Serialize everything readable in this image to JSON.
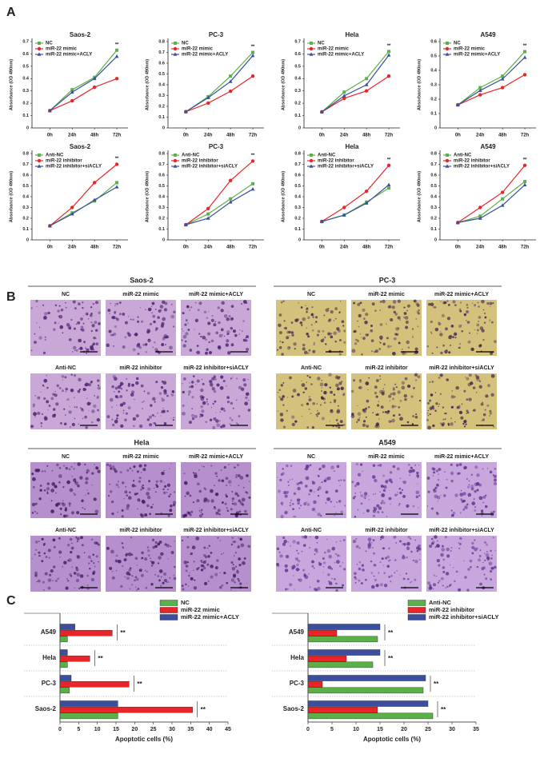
{
  "panel_labels": [
    "A",
    "B",
    "C"
  ],
  "chart_data": [
    {
      "type": "line",
      "title": "Saos-2",
      "y_label": "Absorbance (OD 490nm)",
      "categories": [
        "0h",
        "24h",
        "48h",
        "72h"
      ],
      "annotation": "**",
      "series": [
        {
          "name": "NC",
          "color": "#5bb04a",
          "values": [
            0.14,
            0.31,
            0.41,
            0.63
          ]
        },
        {
          "name": "miR-22 mimic",
          "color": "#e8262a",
          "values": [
            0.14,
            0.22,
            0.33,
            0.4
          ]
        },
        {
          "name": "miR-22 mimic+ACLY",
          "color": "#3b4fa0",
          "values": [
            0.14,
            0.29,
            0.4,
            0.58
          ]
        }
      ],
      "ylim": [
        0,
        0.7
      ],
      "yticks": [
        0,
        0.1,
        0.2,
        0.3,
        0.4,
        0.5,
        0.6,
        0.7
      ]
    },
    {
      "type": "line",
      "title": "PC-3",
      "y_label": "Absorbance (OD 490nm)",
      "categories": [
        "0h",
        "24h",
        "48h",
        "72h"
      ],
      "annotation": "**",
      "series": [
        {
          "name": "NC",
          "color": "#5bb04a",
          "values": [
            0.15,
            0.29,
            0.48,
            0.7
          ]
        },
        {
          "name": "miR-22 mimic",
          "color": "#e8262a",
          "values": [
            0.15,
            0.23,
            0.34,
            0.48
          ]
        },
        {
          "name": "miR-22 mimic+ACLY",
          "color": "#3b4fa0",
          "values": [
            0.15,
            0.28,
            0.43,
            0.67
          ]
        }
      ],
      "ylim": [
        0,
        0.8
      ],
      "yticks": [
        0,
        0.1,
        0.2,
        0.3,
        0.4,
        0.5,
        0.6,
        0.7,
        0.8
      ]
    },
    {
      "type": "line",
      "title": "Hela",
      "y_label": "Absorbance (OD 490nm)",
      "categories": [
        "0h",
        "24h",
        "48h",
        "72h"
      ],
      "annotation": "**",
      "series": [
        {
          "name": "NC",
          "color": "#5bb04a",
          "values": [
            0.13,
            0.29,
            0.4,
            0.62
          ]
        },
        {
          "name": "miR-22 mimic",
          "color": "#e8262a",
          "values": [
            0.13,
            0.24,
            0.3,
            0.42
          ]
        },
        {
          "name": "miR-22 mimic+ACLY",
          "color": "#3b4fa0",
          "values": [
            0.13,
            0.26,
            0.35,
            0.59
          ]
        }
      ],
      "ylim": [
        0,
        0.7
      ],
      "yticks": [
        0,
        0.1,
        0.2,
        0.3,
        0.4,
        0.5,
        0.6,
        0.7
      ]
    },
    {
      "type": "line",
      "title": "A549",
      "y_label": "Absorbance (OD 490nm)",
      "categories": [
        "0h",
        "24h",
        "48h",
        "72h"
      ],
      "annotation": "**",
      "series": [
        {
          "name": "NC",
          "color": "#5bb04a",
          "values": [
            0.16,
            0.28,
            0.36,
            0.53
          ]
        },
        {
          "name": "miR-22 mimic",
          "color": "#e8262a",
          "values": [
            0.16,
            0.23,
            0.28,
            0.37
          ]
        },
        {
          "name": "miR-22 mimic+ACLY",
          "color": "#3b4fa0",
          "values": [
            0.16,
            0.26,
            0.34,
            0.49
          ]
        }
      ],
      "ylim": [
        0,
        0.6
      ],
      "yticks": [
        0,
        0.1,
        0.2,
        0.3,
        0.4,
        0.5,
        0.6
      ]
    },
    {
      "type": "line",
      "title": "Saos-2",
      "y_label": "Absorbance (OD 490nm)",
      "categories": [
        "0h",
        "24h",
        "48h",
        "72h"
      ],
      "annotation": "**",
      "series": [
        {
          "name": "Anti-NC",
          "color": "#5bb04a",
          "values": [
            0.13,
            0.25,
            0.36,
            0.53
          ]
        },
        {
          "name": "miR-22 inhibitor",
          "color": "#e8262a",
          "values": [
            0.13,
            0.3,
            0.53,
            0.7
          ]
        },
        {
          "name": "miR-22 inhibitor+siACLY",
          "color": "#3b4fa0",
          "values": [
            0.13,
            0.24,
            0.37,
            0.49
          ]
        }
      ],
      "ylim": [
        0,
        0.8
      ],
      "yticks": [
        0,
        0.1,
        0.2,
        0.3,
        0.4,
        0.5,
        0.6,
        0.7,
        0.8
      ]
    },
    {
      "type": "line",
      "title": "PC-3",
      "y_label": "Absorbance (OD 490nm)",
      "categories": [
        "0h",
        "24h",
        "48h",
        "72h"
      ],
      "annotation": "**",
      "series": [
        {
          "name": "Anti-NC",
          "color": "#5bb04a",
          "values": [
            0.14,
            0.24,
            0.38,
            0.52
          ]
        },
        {
          "name": "miR-22 inhibitor",
          "color": "#e8262a",
          "values": [
            0.14,
            0.29,
            0.55,
            0.73
          ]
        },
        {
          "name": "miR-22 inhibitor+siACLY",
          "color": "#3b4fa0",
          "values": [
            0.14,
            0.2,
            0.35,
            0.47
          ]
        }
      ],
      "ylim": [
        0,
        0.8
      ],
      "yticks": [
        0,
        0.1,
        0.2,
        0.3,
        0.4,
        0.5,
        0.6,
        0.7,
        0.8
      ]
    },
    {
      "type": "line",
      "title": "Hela",
      "y_label": "Absorbance (OD 490nm)",
      "categories": [
        "0h",
        "24h",
        "48h",
        "72h"
      ],
      "annotation": "**",
      "series": [
        {
          "name": "Anti-NC",
          "color": "#5bb04a",
          "values": [
            0.17,
            0.23,
            0.35,
            0.48
          ]
        },
        {
          "name": "miR-22 inhibitor",
          "color": "#e8262a",
          "values": [
            0.17,
            0.3,
            0.45,
            0.69
          ]
        },
        {
          "name": "miR-22 inhibitor+siACLY",
          "color": "#3b4fa0",
          "values": [
            0.17,
            0.23,
            0.34,
            0.51
          ]
        }
      ],
      "ylim": [
        0,
        0.8
      ],
      "yticks": [
        0,
        0.1,
        0.2,
        0.3,
        0.4,
        0.5,
        0.6,
        0.7,
        0.8
      ]
    },
    {
      "type": "line",
      "title": "A549",
      "y_label": "Absorbance (OD 490nm)",
      "categories": [
        "0h",
        "24h",
        "48h",
        "72h"
      ],
      "annotation": "**",
      "series": [
        {
          "name": "Anti-NC",
          "color": "#5bb04a",
          "values": [
            0.16,
            0.22,
            0.38,
            0.54
          ]
        },
        {
          "name": "miR-22 inhibitor",
          "color": "#e8262a",
          "values": [
            0.16,
            0.3,
            0.44,
            0.69
          ]
        },
        {
          "name": "miR-22 inhibitor+siACLY",
          "color": "#3b4fa0",
          "values": [
            0.16,
            0.2,
            0.32,
            0.51
          ]
        }
      ],
      "ylim": [
        0,
        0.8
      ],
      "yticks": [
        0,
        0.1,
        0.2,
        0.3,
        0.4,
        0.5,
        0.6,
        0.7,
        0.8
      ]
    },
    {
      "type": "hbar",
      "x_label": "Apoptotic cells (%)",
      "categories": [
        "A549",
        "Hela",
        "PC-3",
        "Saos-2"
      ],
      "annotation": "**",
      "series": [
        {
          "name": "NC",
          "color": "#5bb04a",
          "values": [
            2,
            2,
            2.5,
            15.5
          ]
        },
        {
          "name": "miR-22 mimic",
          "color": "#e8262a",
          "values": [
            14,
            8,
            18.5,
            35.5
          ]
        },
        {
          "name": "miR-22 mimic+ACLY",
          "color": "#3b4fa0",
          "values": [
            4,
            2,
            3,
            15.5
          ]
        }
      ],
      "xlim": [
        0,
        45
      ],
      "xticks": [
        0,
        5,
        10,
        15,
        20,
        25,
        30,
        35,
        40,
        45
      ]
    },
    {
      "type": "hbar",
      "x_label": "Apoptotic cells (%)",
      "categories": [
        "A549",
        "Hela",
        "PC-3",
        "Saos-2"
      ],
      "annotation": "**",
      "series": [
        {
          "name": "Anti-NC",
          "color": "#5bb04a",
          "values": [
            14.5,
            13.5,
            24,
            26
          ]
        },
        {
          "name": "miR-22 inhibitor",
          "color": "#e8262a",
          "values": [
            6,
            8,
            3,
            14.5
          ]
        },
        {
          "name": "miR-22 inhibitor+siACLY",
          "color": "#3b4fa0",
          "values": [
            15,
            15,
            24.5,
            25
          ]
        }
      ],
      "xlim": [
        0,
        35
      ],
      "xticks": [
        0,
        5,
        10,
        15,
        20,
        25,
        30,
        35
      ]
    }
  ],
  "micrographs": [
    {
      "title": "Saos-2",
      "labels": [
        "NC",
        "miR-22 mimic",
        "miR-22 mimic+ACLY",
        "Anti-NC",
        "miR-22 inhibitor",
        "miR-22 inhibitor+siACLY"
      ]
    },
    {
      "title": "PC-3",
      "labels": [
        "NC",
        "miR-22 mimic",
        "miR-22 mimic+ACLY",
        "Anti-NC",
        "miR-22 inhibitor",
        "miR-22 inhibitor+siACLY"
      ]
    },
    {
      "title": "Hela",
      "labels": [
        "NC",
        "miR-22 mimic",
        "miR-22 mimic+ACLY",
        "Anti-NC",
        "miR-22 inhibitor",
        "miR-22 inhibitor+siACLY"
      ]
    },
    {
      "title": "A549",
      "labels": [
        "NC",
        "miR-22 mimic",
        "miR-22 mimic+ACLY",
        "Anti-NC",
        "miR-22 inhibitor",
        "miR-22 inhibitor+siACLY"
      ]
    }
  ]
}
